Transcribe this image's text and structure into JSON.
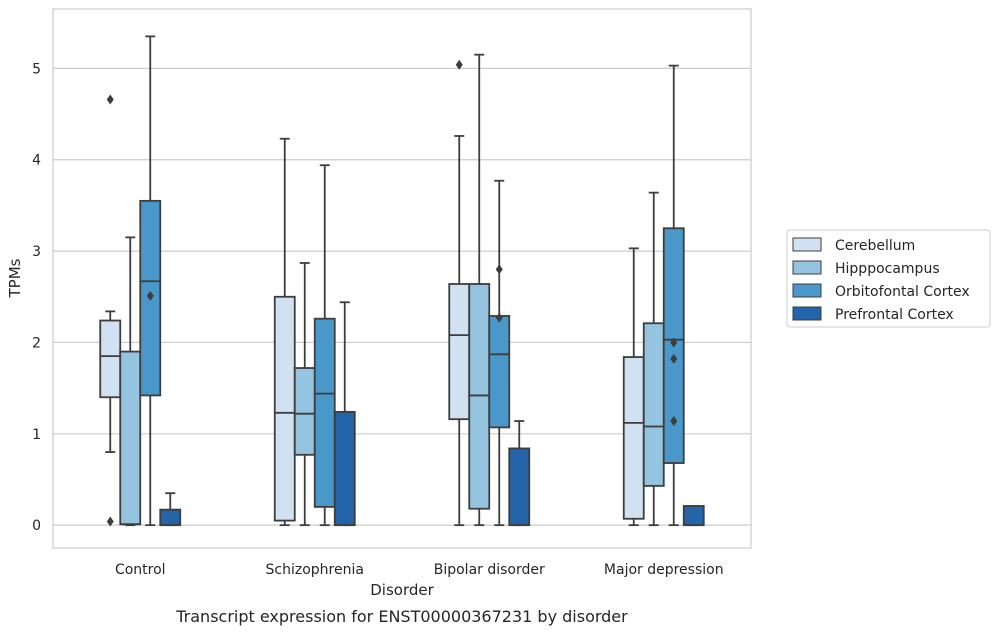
{
  "chart_data": {
    "type": "box",
    "title": "Transcript expression for ENST00000367231 by disorder",
    "xlabel": "Disorder",
    "ylabel": "TPMs",
    "ylim": [
      -0.25,
      5.65
    ],
    "yticks": [
      0,
      1,
      2,
      3,
      4,
      5
    ],
    "grid": "horizontal",
    "legend_position": "right",
    "categories": [
      "Control",
      "Schizophrenia",
      "Bipolar disorder",
      "Major depression"
    ],
    "series": [
      {
        "name": "Cerebellum",
        "color": "#d0e1f2",
        "boxes": [
          {
            "whislo": 0.8,
            "q1": 1.4,
            "med": 1.85,
            "q3": 2.24,
            "whishi": 2.34,
            "fliers": [
              4.66,
              0.04
            ]
          },
          {
            "whislo": 0.0,
            "q1": 0.05,
            "med": 1.23,
            "q3": 2.5,
            "whishi": 4.23,
            "fliers": []
          },
          {
            "whislo": 0.0,
            "q1": 1.16,
            "med": 2.08,
            "q3": 2.64,
            "whishi": 4.26,
            "fliers": [
              5.04
            ]
          },
          {
            "whislo": 0.0,
            "q1": 0.07,
            "med": 1.12,
            "q3": 1.84,
            "whishi": 3.03,
            "fliers": []
          }
        ]
      },
      {
        "name": "Hipppocampus",
        "color": "#94c4df",
        "boxes": [
          {
            "whislo": 0.0,
            "q1": 0.01,
            "med": 0.01,
            "q3": 1.9,
            "whishi": 3.15,
            "fliers": []
          },
          {
            "whislo": 0.0,
            "q1": 0.77,
            "med": 1.22,
            "q3": 1.72,
            "whishi": 2.87,
            "fliers": []
          },
          {
            "whislo": 0.0,
            "q1": 0.18,
            "med": 1.42,
            "q3": 2.64,
            "whishi": 5.15,
            "fliers": []
          },
          {
            "whislo": 0.0,
            "q1": 0.43,
            "med": 1.08,
            "q3": 2.21,
            "whishi": 3.64,
            "fliers": []
          }
        ]
      },
      {
        "name": "Orbitofontal Cortex",
        "color": "#4a98c9",
        "boxes": [
          {
            "whislo": 0.0,
            "q1": 1.42,
            "med": 2.67,
            "q3": 3.55,
            "whishi": 5.35,
            "fliers": [
              2.51
            ]
          },
          {
            "whislo": 0.0,
            "q1": 0.2,
            "med": 1.44,
            "q3": 2.26,
            "whishi": 3.94,
            "fliers": []
          },
          {
            "whislo": 0.0,
            "q1": 1.07,
            "med": 1.87,
            "q3": 2.29,
            "whishi": 3.77,
            "fliers": [
              2.8,
              2.27
            ]
          },
          {
            "whislo": 0.0,
            "q1": 0.68,
            "med": 2.03,
            "q3": 3.25,
            "whishi": 5.03,
            "fliers": [
              2.0,
              1.82,
              1.14
            ]
          }
        ]
      },
      {
        "name": "Prefrontal Cortex",
        "color": "#2464a8",
        "boxes": [
          {
            "whislo": 0.0,
            "q1": 0.0,
            "med": 0.0,
            "q3": 0.17,
            "whishi": 0.35,
            "fliers": []
          },
          {
            "whislo": 0.0,
            "q1": 0.0,
            "med": 0.0,
            "q3": 1.24,
            "whishi": 2.44,
            "fliers": []
          },
          {
            "whislo": 0.0,
            "q1": 0.0,
            "med": 0.0,
            "q3": 0.84,
            "whishi": 1.14,
            "fliers": []
          },
          {
            "whislo": 0.0,
            "q1": 0.0,
            "med": 0.0,
            "q3": 0.21,
            "whishi": 0.21,
            "fliers": []
          }
        ]
      }
    ]
  }
}
